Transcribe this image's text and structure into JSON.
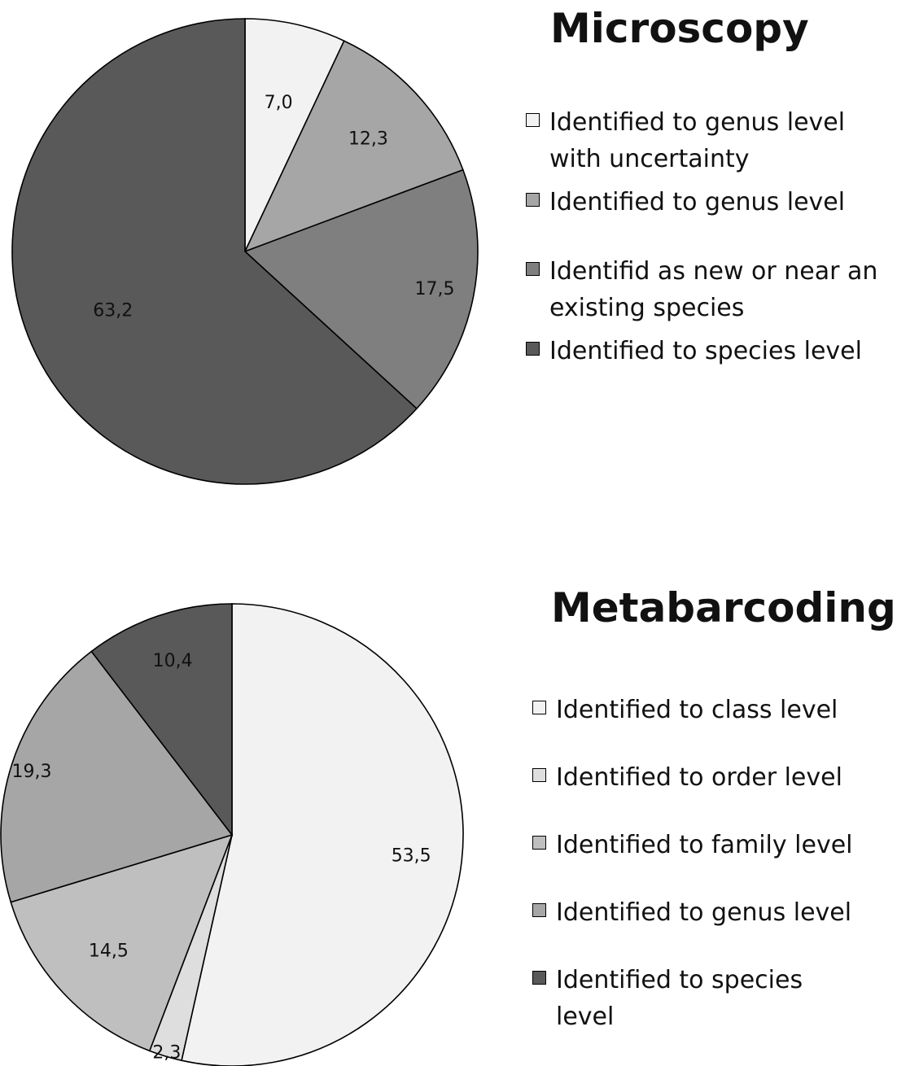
{
  "chart_data": [
    {
      "type": "pie",
      "title": "Microscopy",
      "start": "top, clockwise",
      "slices": [
        {
          "label": "Identified to genus level\nwith uncertainty",
          "value": 7.0,
          "display": "7,0",
          "color": "#f2f2f2"
        },
        {
          "label": "Identified to genus level",
          "value": 12.3,
          "display": "12,3",
          "color": "#a6a6a6"
        },
        {
          "label": "Identifid as new or near an\nexisting species",
          "value": 17.5,
          "display": "17,5",
          "color": "#7f7f7f"
        },
        {
          "label": "Identified to species level",
          "value": 63.2,
          "display": "63,2",
          "color": "#595959"
        }
      ]
    },
    {
      "type": "pie",
      "title": "Metabarcoding",
      "start": "top, clockwise",
      "slices": [
        {
          "label": "Identified to class level",
          "value": 53.5,
          "display": "53,5",
          "color": "#f2f2f2"
        },
        {
          "label": "Identified to order level",
          "value": 2.3,
          "display": "2,3",
          "color": "#dedede"
        },
        {
          "label": "Identified to family level",
          "value": 14.5,
          "display": "14,5",
          "color": "#bfbfbf"
        },
        {
          "label": "Identified to genus level",
          "value": 19.3,
          "display": "19,3",
          "color": "#a6a6a6"
        },
        {
          "label": "Identified to species\nlevel",
          "value": 10.4,
          "display": "10,4",
          "color": "#595959"
        }
      ]
    }
  ]
}
